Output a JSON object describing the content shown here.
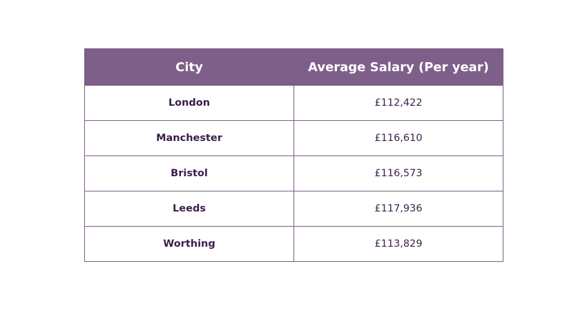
{
  "table": {
    "headers": {
      "city": "City",
      "salary": "Average Salary (Per year)"
    },
    "rows": [
      {
        "city": "London",
        "salary": "£112,422"
      },
      {
        "city": "Manchester",
        "salary": "£116,610"
      },
      {
        "city": "Bristol",
        "salary": "£116,573"
      },
      {
        "city": "Leeds",
        "salary": "£117,936"
      },
      {
        "city": "Worthing",
        "salary": "£113,829"
      }
    ]
  },
  "colors": {
    "header_bg": "#7e5f8a",
    "border": "#7b5a87",
    "text": "#3b1f4a"
  }
}
